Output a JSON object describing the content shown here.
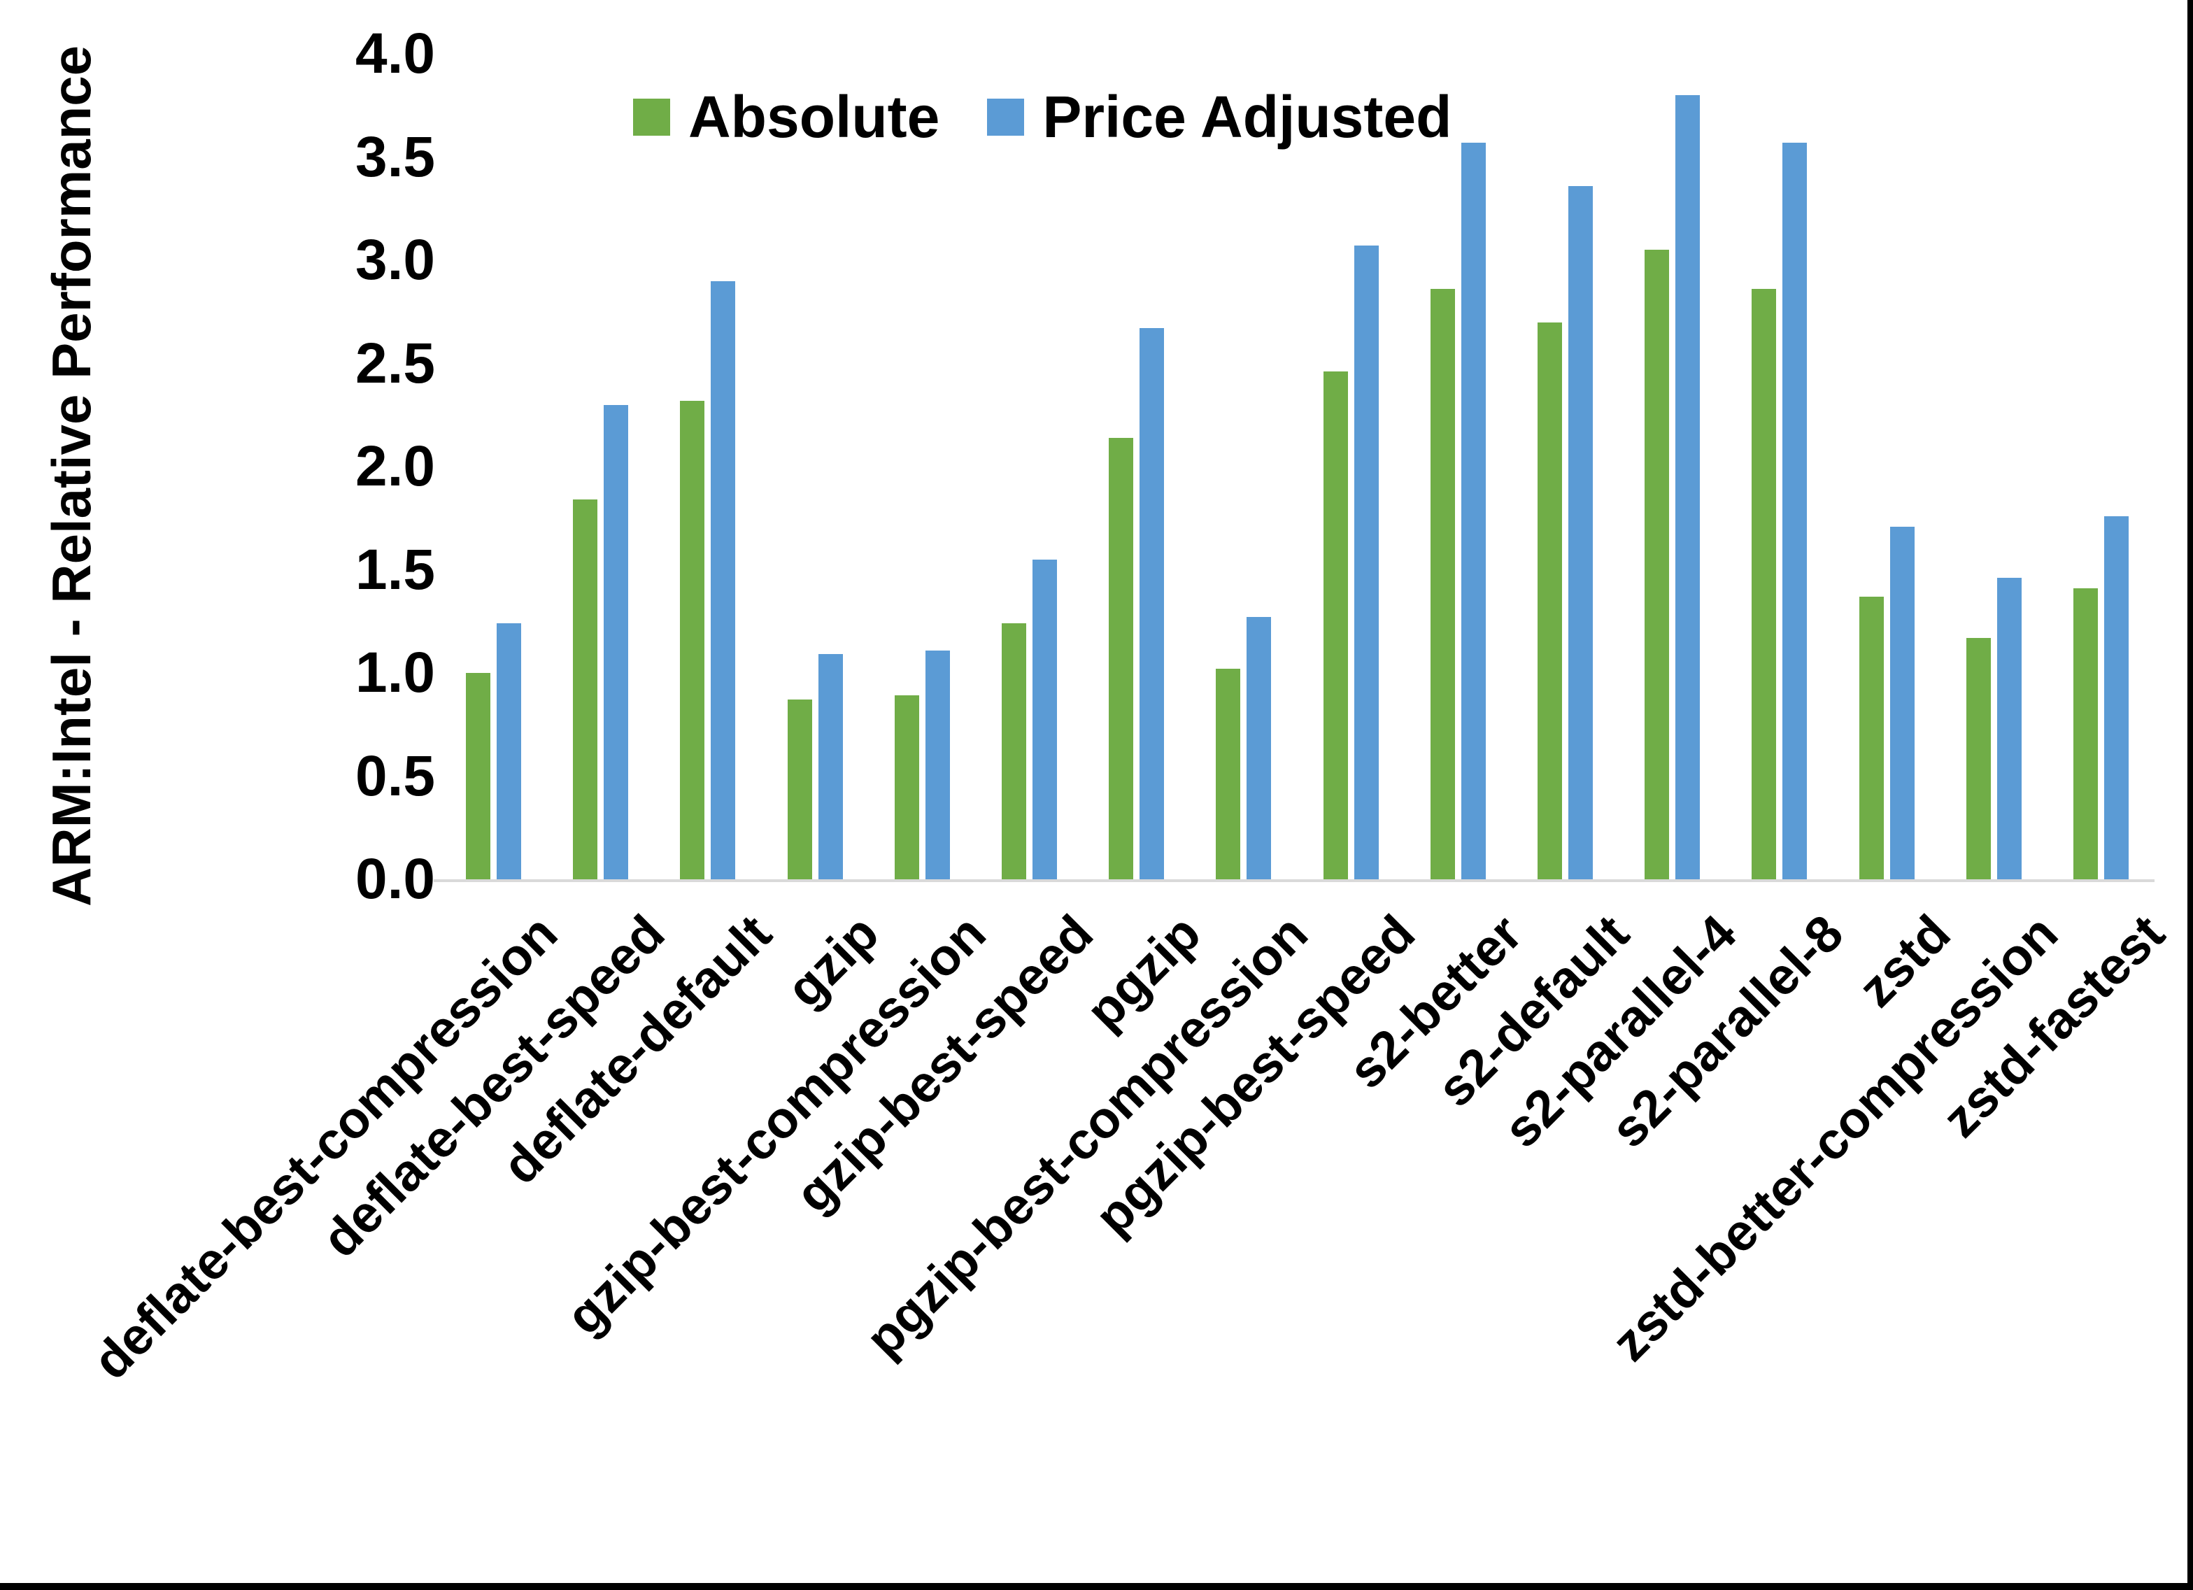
{
  "ylabel": "ARM:Intel - Relative Performance",
  "yticks": [
    "4.0",
    "3.5",
    "3.0",
    "2.5",
    "2.0",
    "1.5",
    "1.0",
    "0.5",
    "0.0"
  ],
  "colors": {
    "absolute": "#70AD47",
    "price_adjusted": "#5B9BD5",
    "axis_line": "#D9D9D9",
    "text": "#000000",
    "border": "#000000"
  },
  "legend": [
    {
      "label": "Absolute",
      "color": "#70AD47"
    },
    {
      "label": "Price Adjusted",
      "color": "#5B9BD5"
    }
  ],
  "chart_data": {
    "type": "bar",
    "title": "",
    "xlabel": "",
    "ylabel": "ARM:Intel - Relative Performance",
    "ylim": [
      0.0,
      4.0
    ],
    "ytick_step": 0.5,
    "grid": false,
    "legend_position": "top-center",
    "categories": [
      "deflate-best-compression",
      "deflate-best-speed",
      "deflate-default",
      "gzip",
      "gzip-best-compression",
      "gzip-best-speed",
      "pgzip",
      "pgzip-best-compression",
      "pgzip-best-speed",
      "s2-better",
      "s2-default",
      "s2-parallel-4",
      "s2-parallel-8",
      "zstd",
      "zstd-better-compression",
      "zstd-fastest"
    ],
    "series": [
      {
        "name": "Absolute",
        "color": "#70AD47",
        "values": [
          1.0,
          1.84,
          2.32,
          0.87,
          0.89,
          1.24,
          2.14,
          1.02,
          2.46,
          2.86,
          2.7,
          3.05,
          2.86,
          1.37,
          1.17,
          1.41
        ]
      },
      {
        "name": "Price Adjusted",
        "color": "#5B9BD5",
        "values": [
          1.24,
          2.3,
          2.9,
          1.09,
          1.11,
          1.55,
          2.67,
          1.27,
          3.07,
          3.57,
          3.36,
          3.8,
          3.57,
          1.71,
          1.46,
          1.76
        ]
      }
    ]
  }
}
